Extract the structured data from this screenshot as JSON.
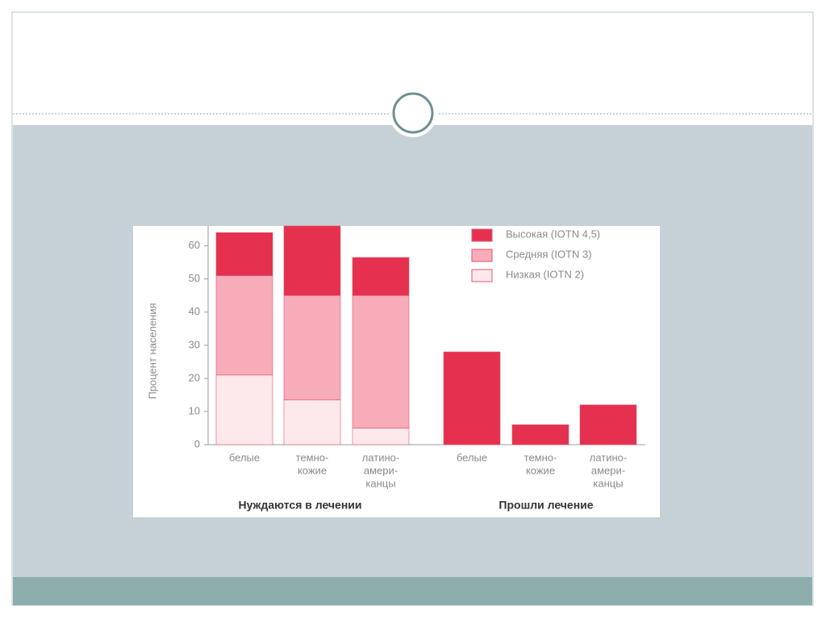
{
  "chart_data": {
    "type": "stacked-bar",
    "y_label": "Процент населения",
    "categories": [
      [
        "белые"
      ],
      [
        "темно-",
        "кожие"
      ],
      [
        "латино-",
        "амери-",
        "канцы"
      ],
      [
        "белые"
      ],
      [
        "темно-",
        "кожие"
      ],
      [
        "латино-",
        "амери-",
        "канцы"
      ]
    ],
    "group_labels": [
      "Нуждаются в лечении",
      "Прошли лечение"
    ],
    "series": [
      {
        "name": "Низкая (IOTN 2)",
        "color": "#fde8ec",
        "values": [
          21,
          13.5,
          5,
          null,
          null,
          null
        ]
      },
      {
        "name": "Средняя (IOTN 3)",
        "color": "#f8abb8",
        "values": [
          30,
          31.5,
          40,
          null,
          null,
          null
        ]
      },
      {
        "name": "Высокая (IOTN 4,5)",
        "color": "#e6304f",
        "values": [
          13,
          21,
          11.5,
          28,
          6,
          12
        ]
      }
    ],
    "ylim": [
      0,
      66
    ],
    "yticks": [
      0,
      10,
      20,
      30,
      40,
      50,
      60
    ],
    "legend": "top-right"
  }
}
